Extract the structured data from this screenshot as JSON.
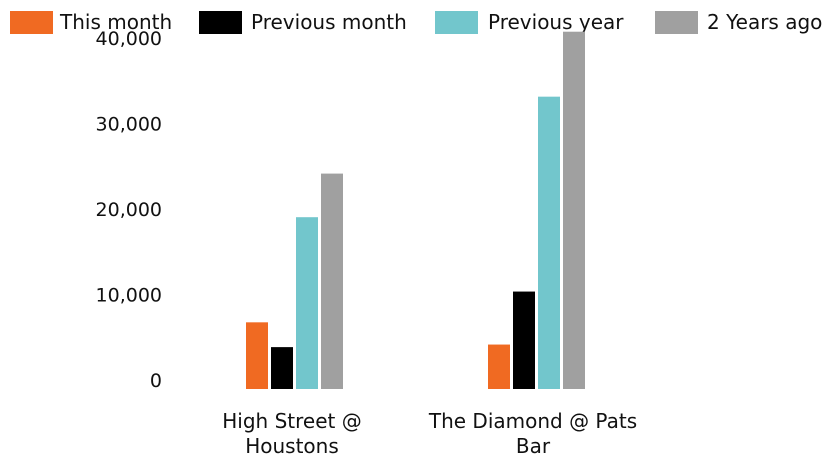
{
  "chart_data": {
    "type": "bar",
    "categories": [
      "High Street @ Houstons",
      "The Diamond @ Pats Bar"
    ],
    "series": [
      {
        "name": "This month",
        "color": "#f06a22",
        "values": [
          7800,
          5200
        ]
      },
      {
        "name": "Previous month",
        "color": "#000000",
        "values": [
          4900,
          11400
        ]
      },
      {
        "name": "Previous year",
        "color": "#72c6cc",
        "values": [
          20100,
          34200
        ]
      },
      {
        "name": "2 Years ago",
        "color": "#a0a0a0",
        "values": [
          25200,
          41800
        ]
      }
    ],
    "yticks": [
      "0",
      "10,000",
      "20,000",
      "30,000",
      "40,000"
    ],
    "ylim": [
      0,
      42000
    ],
    "grid": false,
    "legend": "top",
    "title": "",
    "xlabel": "",
    "ylabel": ""
  }
}
